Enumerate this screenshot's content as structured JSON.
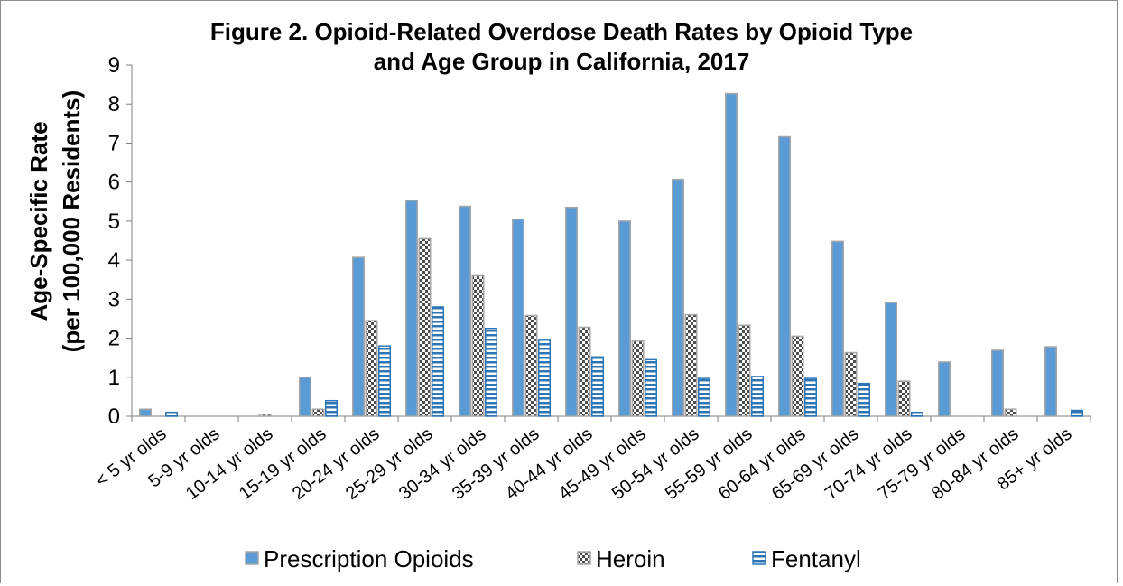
{
  "chart_data": {
    "type": "bar",
    "title_lines": [
      "Figure 2. Opioid-Related Overdose Death Rates by Opioid Type",
      "and Age Group in California, 2017"
    ],
    "ylabel_lines": [
      "Age-Specific Rate",
      "(per 100,000 Residents)"
    ],
    "xlabel": "",
    "ylim": [
      0,
      9
    ],
    "yticks": [
      "0",
      "1",
      "2",
      "3",
      "4",
      "5",
      "6",
      "7",
      "8",
      "9"
    ],
    "grid": false,
    "legend_position": "bottom",
    "categories": [
      "< 5 yr olds",
      "5-9 yr olds",
      "10-14 yr olds",
      "15-19 yr olds",
      "20-24 yr olds",
      "25-29 yr olds",
      "30-34 yr olds",
      "35-39 yr olds",
      "40-44 yr olds",
      "45-49 yr olds",
      "50-54 yr olds",
      "55-59 yr olds",
      "60-64 yr olds",
      "65-69 yr olds",
      "70-74 yr olds",
      "75-79 yr olds",
      "80-84 yr olds",
      "85+ yr olds"
    ],
    "series": [
      {
        "name": "Prescription Opioids",
        "pattern": "solid",
        "color": "#5b9bd5",
        "values": [
          0.18,
          0,
          0,
          1.0,
          4.07,
          5.53,
          5.38,
          5.05,
          5.35,
          5.0,
          6.07,
          8.27,
          7.16,
          4.48,
          2.91,
          1.39,
          1.69,
          1.78
        ]
      },
      {
        "name": "Heroin",
        "pattern": "checker",
        "color": "#808080",
        "values": [
          0,
          0,
          0.05,
          0.18,
          2.45,
          4.55,
          3.6,
          2.58,
          2.28,
          1.93,
          2.6,
          2.33,
          2.05,
          1.63,
          0.9,
          0,
          0.18,
          0
        ]
      },
      {
        "name": "Fentanyl",
        "pattern": "hstripe",
        "color": "#2e75b6",
        "values": [
          0.1,
          0,
          0,
          0.4,
          1.8,
          2.8,
          2.25,
          1.97,
          1.52,
          1.45,
          0.97,
          1.02,
          0.97,
          0.84,
          0.1,
          0,
          0,
          0.15
        ]
      }
    ]
  }
}
